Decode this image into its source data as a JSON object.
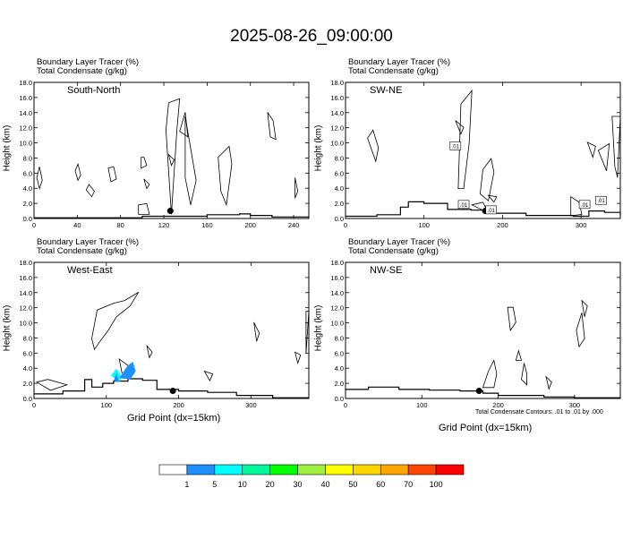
{
  "title": "2025-08-26_09:00:00",
  "colors": {
    "contour": "#000000",
    "terrain": "#000000",
    "marker": "#000000",
    "colorbar": [
      "#ffffff",
      "#1e90ff",
      "#00ffff",
      "#00fa9a",
      "#00ff00",
      "#a0f040",
      "#ffff00",
      "#ffd700",
      "#ffa500",
      "#ff4500",
      "#ff0000"
    ]
  },
  "colorbar_labels": [
    "1",
    "5",
    "10",
    "20",
    "30",
    "40",
    "50",
    "60",
    "70",
    "100"
  ],
  "xaxis_label": "Grid Point (dx=15km)",
  "contour_note": "Total Condensate Contours: .01 to .01 by .000",
  "chart_data": [
    {
      "type": "contour",
      "panel": "South-North",
      "subtitle1": "Boundary Layer Tracer   (%)",
      "subtitle2": "Total Condensate   (g/kg)",
      "ylabel": "Height (km)",
      "xlim": [
        0,
        254
      ],
      "ylim": [
        0,
        18
      ],
      "xticks": [
        "0",
        "40",
        "80",
        "120",
        "160",
        "200",
        "240"
      ],
      "yticks": [
        "0.0",
        "2.0",
        "4.0",
        "6.0",
        "8.0",
        "10.0",
        "12.0",
        "14.0",
        "16.0",
        "18.0"
      ],
      "marker": {
        "x": 126,
        "y": 1.0
      },
      "terrain": [
        [
          0,
          0.1
        ],
        [
          50,
          0.1
        ],
        [
          100,
          0.3
        ],
        [
          140,
          0.3
        ],
        [
          160,
          0.5
        ],
        [
          190,
          0.6
        ],
        [
          200,
          0.4
        ],
        [
          220,
          0.2
        ],
        [
          254,
          0.2
        ]
      ]
    },
    {
      "type": "contour",
      "panel": "SW-NE",
      "subtitle1": "Boundary Layer Tracer   (%)",
      "subtitle2": "Total Condensate   (g/kg)",
      "ylabel": "Height (km)",
      "xlim": [
        0,
        350
      ],
      "ylim": [
        0,
        18
      ],
      "xticks": [
        "0",
        "100",
        "200",
        "300"
      ],
      "yticks": [
        "0.0",
        "2.0",
        "4.0",
        "6.0",
        "8.0",
        "10.0",
        "12.0",
        "14.0",
        "16.0",
        "18.0"
      ],
      "marker": {
        "x": 178,
        "y": 1.0
      },
      "contour_labels": [
        ".01",
        ".01",
        ".01",
        ".01",
        ".01"
      ],
      "terrain": [
        [
          0,
          0.3
        ],
        [
          40,
          0.5
        ],
        [
          70,
          1.5
        ],
        [
          80,
          2.2
        ],
        [
          100,
          2.0
        ],
        [
          130,
          1.2
        ],
        [
          160,
          1.1
        ],
        [
          190,
          0.7
        ],
        [
          230,
          0.4
        ],
        [
          290,
          0.3
        ],
        [
          310,
          1.0
        ],
        [
          330,
          0.8
        ],
        [
          350,
          0.4
        ]
      ]
    },
    {
      "type": "contour",
      "panel": "West-East",
      "subtitle1": "Boundary Layer Tracer   (%)",
      "subtitle2": "Total Condensate   (g/kg)",
      "ylabel": "Height (km)",
      "xlim": [
        0,
        380
      ],
      "ylim": [
        0,
        18
      ],
      "xticks": [
        "0",
        "100",
        "200",
        "300"
      ],
      "yticks": [
        "0.0",
        "2.0",
        "4.0",
        "6.0",
        "8.0",
        "10.0",
        "12.0",
        "14.0",
        "16.0",
        "18.0"
      ],
      "marker": {
        "x": 192,
        "y": 1.0
      },
      "terrain": [
        [
          0,
          0.6
        ],
        [
          40,
          1.0
        ],
        [
          65,
          1.0
        ],
        [
          70,
          2.5
        ],
        [
          80,
          1.5
        ],
        [
          95,
          2.0
        ],
        [
          110,
          2.3
        ],
        [
          130,
          2.6
        ],
        [
          150,
          2.4
        ],
        [
          170,
          1.2
        ],
        [
          200,
          1.0
        ],
        [
          240,
          0.8
        ],
        [
          280,
          0.4
        ],
        [
          330,
          0.1
        ],
        [
          380,
          0.1
        ]
      ]
    },
    {
      "type": "contour",
      "panel": "NW-SE",
      "subtitle1": "Boundary Layer Tracer   (%)",
      "subtitle2": "Total Condensate   (g/kg)",
      "ylabel": "Height (km)",
      "xlim": [
        0,
        360
      ],
      "ylim": [
        0,
        18
      ],
      "xticks": [
        "0",
        "100",
        "200",
        "300"
      ],
      "yticks": [
        "0.0",
        "2.0",
        "4.0",
        "6.0",
        "8.0",
        "10.0",
        "12.0",
        "14.0",
        "16.0",
        "18.0"
      ],
      "marker": {
        "x": 175,
        "y": 1.0
      },
      "terrain": [
        [
          0,
          1.2
        ],
        [
          30,
          1.5
        ],
        [
          70,
          1.2
        ],
        [
          110,
          1.1
        ],
        [
          150,
          1.0
        ],
        [
          180,
          0.7
        ],
        [
          200,
          0.4
        ],
        [
          260,
          0.2
        ],
        [
          300,
          0.1
        ],
        [
          360,
          0.1
        ]
      ]
    }
  ]
}
